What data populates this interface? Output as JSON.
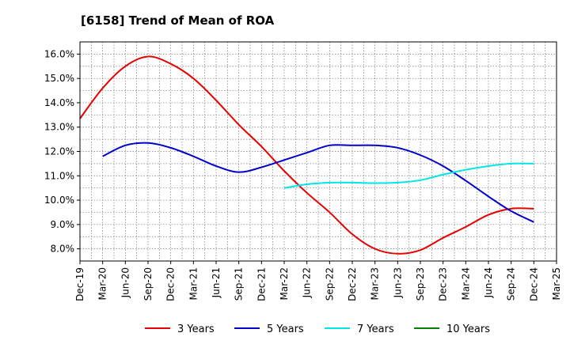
{
  "chart_data": {
    "type": "line",
    "title": "[6158]  Trend of Mean of ROA",
    "xlabel": "",
    "ylabel": "",
    "x": [
      "Dec-19",
      "Mar-20",
      "Jun-20",
      "Sep-20",
      "Dec-20",
      "Mar-21",
      "Jun-21",
      "Sep-21",
      "Dec-21",
      "Mar-22",
      "Jun-22",
      "Sep-22",
      "Dec-22",
      "Mar-23",
      "Jun-23",
      "Sep-23",
      "Dec-23",
      "Mar-24",
      "Jun-24",
      "Sep-24",
      "Dec-24",
      "Mar-25"
    ],
    "y_ticks": [
      "8.0%",
      "9.0%",
      "10.0%",
      "11.0%",
      "12.0%",
      "13.0%",
      "14.0%",
      "15.0%",
      "16.0%"
    ],
    "ylim": [
      7.5,
      16.5
    ],
    "grid": true,
    "legend_position": "bottom",
    "series": [
      {
        "name": "3 Years",
        "color": "#e60000",
        "values": [
          13.35,
          14.6,
          15.5,
          15.9,
          15.6,
          15.0,
          14.1,
          13.1,
          12.2,
          11.2,
          10.3,
          9.5,
          8.6,
          8.0,
          7.8,
          7.95,
          8.45,
          8.9,
          9.4,
          9.65,
          9.65,
          null
        ]
      },
      {
        "name": "5 Years",
        "color": "#0000cc",
        "values": [
          null,
          11.8,
          12.25,
          12.35,
          12.15,
          11.8,
          11.4,
          11.15,
          11.35,
          11.65,
          11.95,
          12.25,
          12.25,
          12.25,
          12.15,
          11.85,
          11.4,
          10.8,
          10.15,
          9.55,
          9.1,
          null
        ]
      },
      {
        "name": "7 Years",
        "color": "#00e5e5",
        "values": [
          null,
          null,
          null,
          null,
          null,
          null,
          null,
          null,
          null,
          10.5,
          10.65,
          10.72,
          10.72,
          10.7,
          10.72,
          10.82,
          11.05,
          11.25,
          11.4,
          11.5,
          11.5,
          null
        ]
      },
      {
        "name": "10 Years",
        "color": "#008000",
        "values": [
          null,
          null,
          null,
          null,
          null,
          null,
          null,
          null,
          null,
          null,
          null,
          null,
          null,
          null,
          null,
          null,
          null,
          null,
          null,
          null,
          null,
          null
        ]
      }
    ]
  }
}
